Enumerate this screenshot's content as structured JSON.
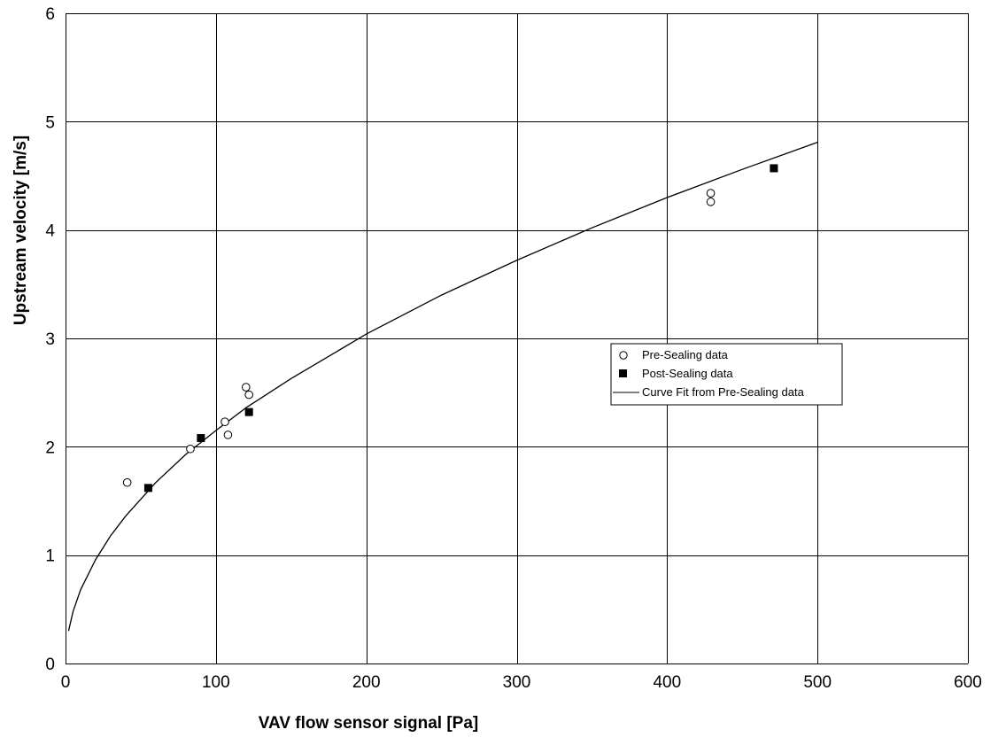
{
  "chart_data": {
    "type": "scatter",
    "title": "",
    "xlabel": "VAV flow sensor signal [Pa]",
    "ylabel": "Upstream velocity [m/s]",
    "xlim": [
      0,
      600
    ],
    "ylim": [
      0,
      6
    ],
    "x_ticks": [
      0,
      100,
      200,
      300,
      400,
      500,
      600
    ],
    "y_ticks": [
      0,
      1,
      2,
      3,
      4,
      5,
      6
    ],
    "grid": true,
    "legend_position": "right-center",
    "series": [
      {
        "name": "Pre-Sealing data",
        "kind": "scatter",
        "marker": "open-circle",
        "points": [
          [
            41,
            1.67
          ],
          [
            83,
            1.98
          ],
          [
            106,
            2.23
          ],
          [
            108,
            2.11
          ],
          [
            120,
            2.55
          ],
          [
            122,
            2.48
          ],
          [
            429,
            4.34
          ],
          [
            429,
            4.26
          ]
        ]
      },
      {
        "name": "Post-Sealing data",
        "kind": "scatter",
        "marker": "filled-square",
        "points": [
          [
            55,
            1.62
          ],
          [
            90,
            2.08
          ],
          [
            122,
            2.32
          ],
          [
            471,
            4.57
          ]
        ]
      },
      {
        "name": "Curve Fit from Pre-Sealing data",
        "kind": "line",
        "points": [
          [
            2,
            0.3
          ],
          [
            5,
            0.48
          ],
          [
            10,
            0.68
          ],
          [
            20,
            0.96
          ],
          [
            30,
            1.18
          ],
          [
            40,
            1.36
          ],
          [
            60,
            1.67
          ],
          [
            80,
            1.93
          ],
          [
            100,
            2.15
          ],
          [
            120,
            2.36
          ],
          [
            150,
            2.63
          ],
          [
            200,
            3.04
          ],
          [
            250,
            3.4
          ],
          [
            300,
            3.72
          ],
          [
            350,
            4.02
          ],
          [
            400,
            4.3
          ],
          [
            450,
            4.56
          ],
          [
            500,
            4.81
          ]
        ]
      }
    ],
    "colors": {
      "grid": "#000000",
      "marker": "#000000",
      "background": "#ffffff"
    }
  }
}
